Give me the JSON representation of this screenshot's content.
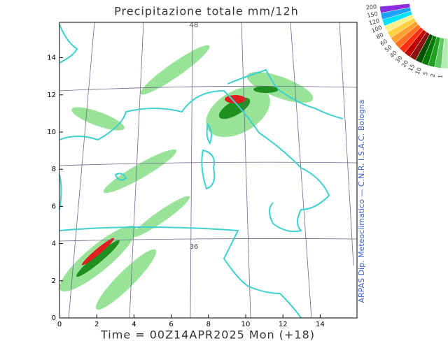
{
  "title": "Precipitazione totale mm/12h",
  "footer": "Time = 00Z14APR2025 Mon (+18)",
  "credit": "ARPAS Dip. Meteoclimatico — C.N.R. I.S.A.C. Bologna",
  "x_axis_labels": [
    "0",
    "2",
    "4",
    "6",
    "8",
    "10",
    "12",
    "14"
  ],
  "y_axis_labels": [
    "0",
    "2",
    "4",
    "6",
    "8",
    "10",
    "12",
    "14"
  ],
  "latitude_labels": [
    "48",
    "36"
  ],
  "legend": {
    "levels": [
      "200",
      "150",
      "120",
      "100",
      "80",
      "60",
      "50",
      "40",
      "30",
      "20",
      "15",
      "10",
      "5",
      "2",
      "1"
    ],
    "colors": [
      "#8a2be2",
      "#1ea0ff",
      "#00e0ff",
      "#fff08c",
      "#ffd040",
      "#ffa030",
      "#ff7020",
      "#ff3010",
      "#c00000",
      "#8b1010",
      "#005000",
      "#007a00",
      "#20a020",
      "#60c860",
      "#b4ecb4"
    ]
  }
}
